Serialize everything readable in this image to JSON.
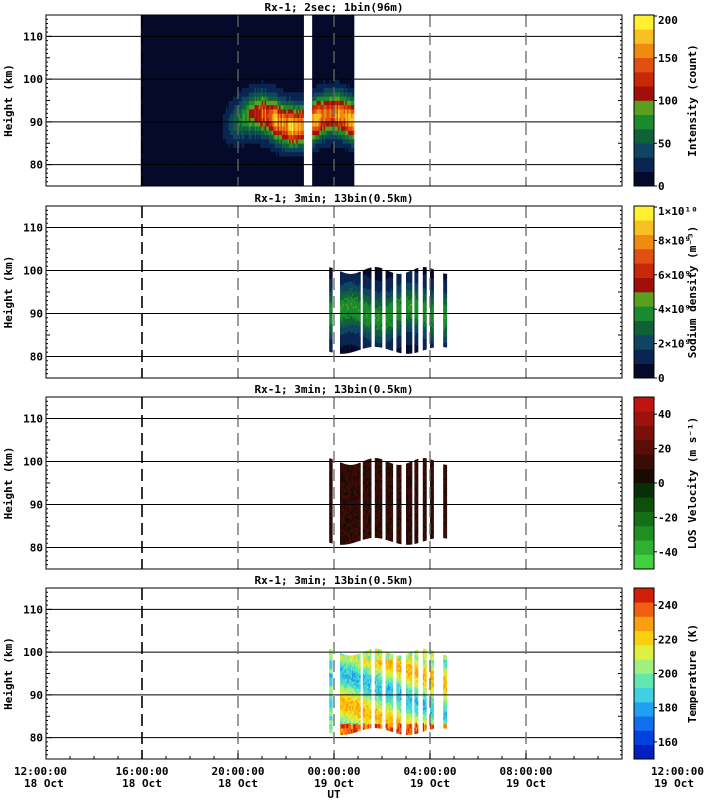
{
  "figure": {
    "x_axis_label": "UT",
    "time_ticks": [
      {
        "time": "12:00:00",
        "day": "18 Oct"
      },
      {
        "time": "16:00:00",
        "day": "18 Oct"
      },
      {
        "time": "20:00:00",
        "day": "18 Oct"
      },
      {
        "time": "00:00:00",
        "day": "19 Oct"
      },
      {
        "time": "04:00:00",
        "day": "19 Oct"
      },
      {
        "time": "08:00:00",
        "day": "19 Oct"
      },
      {
        "time": "12:00:00",
        "day": "19 Oct"
      }
    ]
  },
  "chart_data": [
    {
      "type": "heatmap",
      "title": "Rx-1;  2sec; 1bin(96m)",
      "xlabel": "",
      "ylabel": "Height (km)",
      "x_unit": "hours since 18 Oct 12:00 UT",
      "xlim": [
        0,
        24
      ],
      "ylim": [
        75,
        115
      ],
      "y_ticks": [
        80,
        90,
        100,
        110
      ],
      "colorbar": {
        "label": "Intensity (count)",
        "range": [
          0,
          200
        ],
        "tick_labels": [
          "0",
          "50",
          "100",
          "150",
          "200"
        ],
        "colors": [
          "#050a2a",
          "#0a2550",
          "#0e4560",
          "#10603a",
          "#1a8a2e",
          "#5aa020",
          "#a01008",
          "#c82808",
          "#e05010",
          "#f08a10",
          "#f8c020",
          "#fff030"
        ]
      },
      "data_extent": {
        "x_start": 3.95,
        "x_end": 12.8,
        "gap": [
          10.7,
          11.05
        ],
        "layer_peak_km": 90.5
      }
    },
    {
      "type": "heatmap",
      "title": "Rx-1; 3min; 13bin(0.5km)",
      "xlabel": "",
      "ylabel": "Height (km)",
      "xlim": [
        0,
        24
      ],
      "ylim": [
        75,
        115
      ],
      "y_ticks": [
        80,
        90,
        100,
        110
      ],
      "colorbar": {
        "label": "Sodium density (m⁻³)",
        "range": [
          0,
          10000000000.0
        ],
        "tick_labels": [
          "0",
          "2×10⁹",
          "4×10⁹",
          "6×10⁹",
          "8×10⁹",
          "1×10¹⁰"
        ],
        "colors": [
          "#050a2a",
          "#0a2550",
          "#0e4560",
          "#10603a",
          "#1a8a2e",
          "#5aa020",
          "#a01008",
          "#c82808",
          "#e05010",
          "#f08a10",
          "#f8c020",
          "#fff030"
        ]
      },
      "data_extent": {
        "x_start": 11.8,
        "x_end": 16.8,
        "height_range_km": [
          81,
          101
        ]
      }
    },
    {
      "type": "heatmap",
      "title": "Rx-1; 3min; 13bin(0.5km)",
      "xlabel": "",
      "ylabel": "Height (km)",
      "xlim": [
        0,
        24
      ],
      "ylim": [
        75,
        115
      ],
      "y_ticks": [
        80,
        90,
        100,
        110
      ],
      "colorbar": {
        "label": "LOS Velocity (m s⁻¹)",
        "range": [
          -50,
          50
        ],
        "tick_labels": [
          "-40",
          "-20",
          "0",
          "20",
          "40"
        ],
        "colors": [
          "#40d040",
          "#30b030",
          "#209020",
          "#157015",
          "#0c500c",
          "#083008",
          "#1a0a04",
          "#3a0c06",
          "#5a0e08",
          "#7a100a",
          "#9c120c",
          "#c0140e"
        ]
      },
      "data_extent": {
        "x_start": 11.8,
        "x_end": 16.8,
        "height_range_km": [
          81,
          101
        ]
      }
    },
    {
      "type": "heatmap",
      "title": "Rx-1; 3min; 13bin(0.5km)",
      "xlabel": "UT",
      "ylabel": "Height (km)",
      "xlim": [
        0,
        24
      ],
      "ylim": [
        75,
        115
      ],
      "y_ticks": [
        80,
        90,
        100,
        110
      ],
      "colorbar": {
        "label": "Temperature (K)",
        "range": [
          150,
          250
        ],
        "tick_labels": [
          "160",
          "180",
          "200",
          "220",
          "240"
        ],
        "colors": [
          "#0020c0",
          "#0040e0",
          "#1070f0",
          "#20a0f0",
          "#40d0e0",
          "#60e8b0",
          "#a0f080",
          "#e0f040",
          "#f8d010",
          "#f8a010",
          "#f06010",
          "#d02008"
        ]
      },
      "data_extent": {
        "x_start": 11.8,
        "x_end": 16.8,
        "height_range_km": [
          81,
          101
        ]
      }
    }
  ]
}
